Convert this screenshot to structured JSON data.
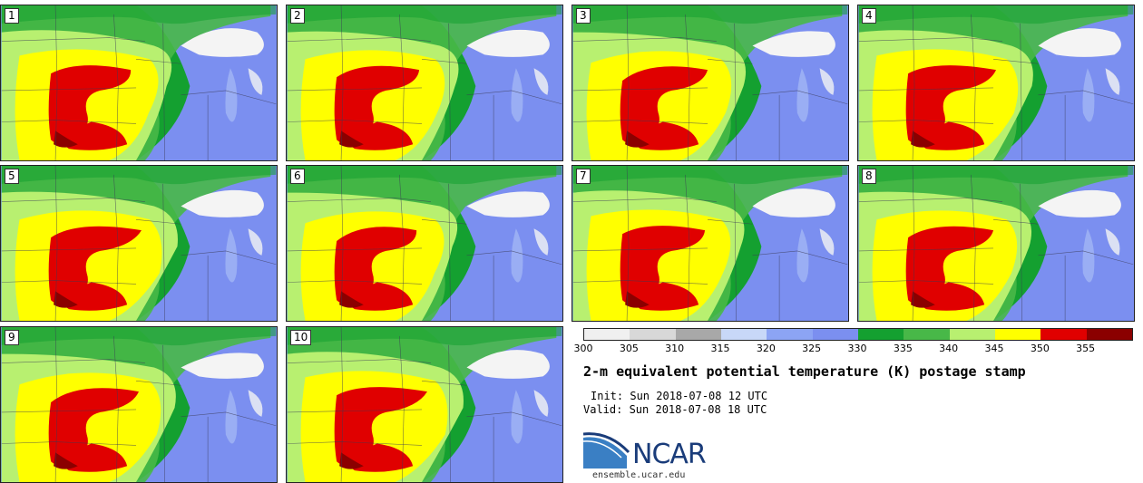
{
  "panels": [
    {
      "label": "1"
    },
    {
      "label": "2"
    },
    {
      "label": "3"
    },
    {
      "label": "4"
    },
    {
      "label": "5"
    },
    {
      "label": "6"
    },
    {
      "label": "7"
    },
    {
      "label": "8"
    },
    {
      "label": "9"
    },
    {
      "label": "10"
    }
  ],
  "colorbar": {
    "ticks": [
      "300",
      "305",
      "310",
      "315",
      "320",
      "325",
      "330",
      "335",
      "340",
      "345",
      "350",
      "355"
    ],
    "colors": [
      "#f0f0f0",
      "#d8d8d8",
      "#a8a8a8",
      "#c8d8f8",
      "#8ca4f4",
      "#7b8ff0",
      "#14a030",
      "#48b848",
      "#b8f070",
      "#ffff00",
      "#e00000",
      "#8b0000"
    ]
  },
  "title": "2-m equivalent potential temperature (K) postage stamp",
  "init": "Init: Sun 2018-07-08 12 UTC",
  "valid": "Valid: Sun 2018-07-08 18 UTC",
  "logo": {
    "text": "NCAR",
    "site": "ensemble.ucar.edu"
  },
  "colors": {
    "blue": "#7b8ff0",
    "lightblue": "#9aaef4",
    "darkgreen": "#14a030",
    "green": "#48b848",
    "lightgreen": "#b8f070",
    "yellow": "#ffff00",
    "red": "#e00000",
    "darkred": "#8b0000",
    "white": "#f4f4f4"
  }
}
